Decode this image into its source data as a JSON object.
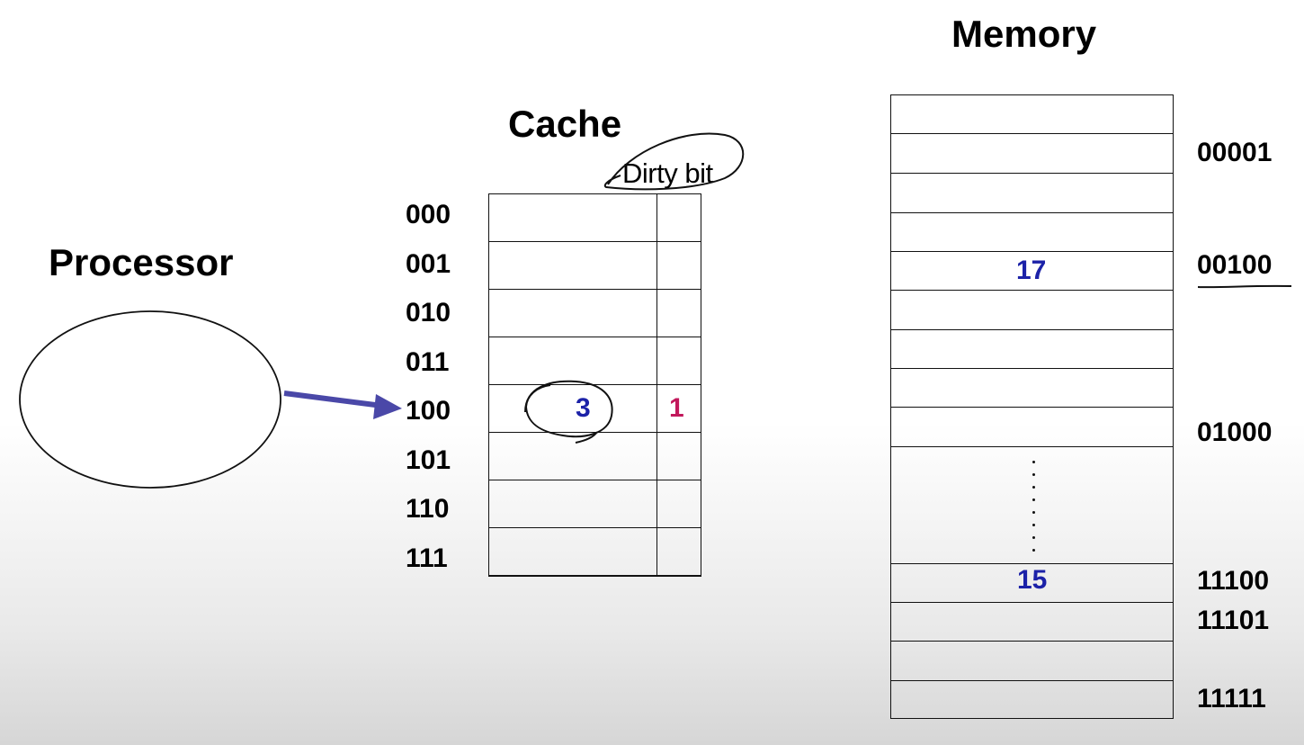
{
  "processor": {
    "title": "Processor"
  },
  "cache": {
    "title": "Cache",
    "dirty_bit_label": "Dirty bit",
    "rows": [
      {
        "address": "000",
        "value": "",
        "dirty": ""
      },
      {
        "address": "001",
        "value": "",
        "dirty": ""
      },
      {
        "address": "010",
        "value": "",
        "dirty": ""
      },
      {
        "address": "011",
        "value": "",
        "dirty": ""
      },
      {
        "address": "100",
        "value": "3",
        "dirty": "1"
      },
      {
        "address": "101",
        "value": "",
        "dirty": ""
      },
      {
        "address": "110",
        "value": "",
        "dirty": ""
      },
      {
        "address": "111",
        "value": "",
        "dirty": ""
      }
    ]
  },
  "memory": {
    "title": "Memory",
    "address_labels": {
      "a00001": "00001",
      "a00100": "00100",
      "a01000": "01000",
      "a11100": "11100",
      "a11101": "11101",
      "a11111": "11111"
    },
    "values": {
      "v00100": "17",
      "v11100": "15"
    }
  },
  "colors": {
    "arrow": "#4a48a8",
    "value_blue": "#1c22a8",
    "dirty_magenta": "#c2185b"
  }
}
